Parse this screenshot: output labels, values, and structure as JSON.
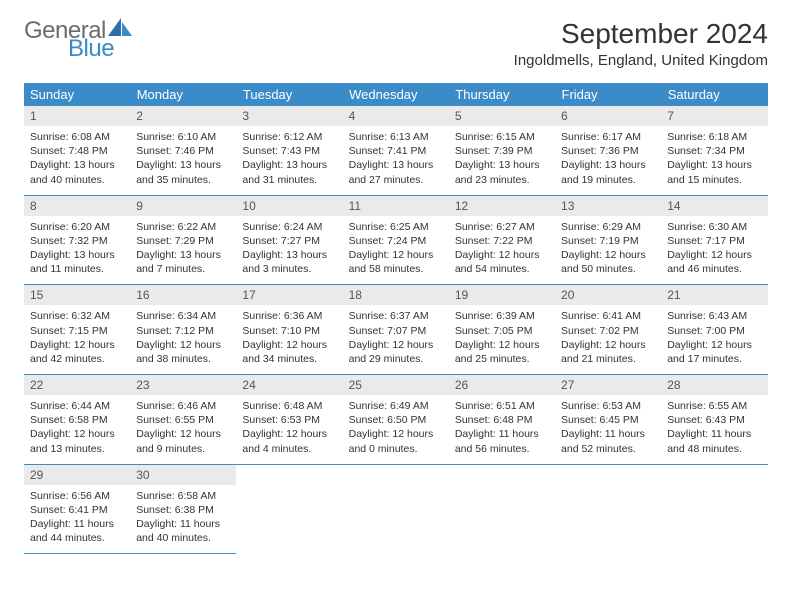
{
  "logo": {
    "general": "General",
    "blue": "Blue"
  },
  "title": "September 2024",
  "location": "Ingoldmells, England, United Kingdom",
  "colors": {
    "header_bg": "#3b8bc9",
    "daynum_bg": "#eaeaea"
  },
  "dow": [
    "Sunday",
    "Monday",
    "Tuesday",
    "Wednesday",
    "Thursday",
    "Friday",
    "Saturday"
  ],
  "days": [
    {
      "n": "1",
      "sr": "6:08 AM",
      "ss": "7:48 PM",
      "dl": "13 hours and 40 minutes."
    },
    {
      "n": "2",
      "sr": "6:10 AM",
      "ss": "7:46 PM",
      "dl": "13 hours and 35 minutes."
    },
    {
      "n": "3",
      "sr": "6:12 AM",
      "ss": "7:43 PM",
      "dl": "13 hours and 31 minutes."
    },
    {
      "n": "4",
      "sr": "6:13 AM",
      "ss": "7:41 PM",
      "dl": "13 hours and 27 minutes."
    },
    {
      "n": "5",
      "sr": "6:15 AM",
      "ss": "7:39 PM",
      "dl": "13 hours and 23 minutes."
    },
    {
      "n": "6",
      "sr": "6:17 AM",
      "ss": "7:36 PM",
      "dl": "13 hours and 19 minutes."
    },
    {
      "n": "7",
      "sr": "6:18 AM",
      "ss": "7:34 PM",
      "dl": "13 hours and 15 minutes."
    },
    {
      "n": "8",
      "sr": "6:20 AM",
      "ss": "7:32 PM",
      "dl": "13 hours and 11 minutes."
    },
    {
      "n": "9",
      "sr": "6:22 AM",
      "ss": "7:29 PM",
      "dl": "13 hours and 7 minutes."
    },
    {
      "n": "10",
      "sr": "6:24 AM",
      "ss": "7:27 PM",
      "dl": "13 hours and 3 minutes."
    },
    {
      "n": "11",
      "sr": "6:25 AM",
      "ss": "7:24 PM",
      "dl": "12 hours and 58 minutes."
    },
    {
      "n": "12",
      "sr": "6:27 AM",
      "ss": "7:22 PM",
      "dl": "12 hours and 54 minutes."
    },
    {
      "n": "13",
      "sr": "6:29 AM",
      "ss": "7:19 PM",
      "dl": "12 hours and 50 minutes."
    },
    {
      "n": "14",
      "sr": "6:30 AM",
      "ss": "7:17 PM",
      "dl": "12 hours and 46 minutes."
    },
    {
      "n": "15",
      "sr": "6:32 AM",
      "ss": "7:15 PM",
      "dl": "12 hours and 42 minutes."
    },
    {
      "n": "16",
      "sr": "6:34 AM",
      "ss": "7:12 PM",
      "dl": "12 hours and 38 minutes."
    },
    {
      "n": "17",
      "sr": "6:36 AM",
      "ss": "7:10 PM",
      "dl": "12 hours and 34 minutes."
    },
    {
      "n": "18",
      "sr": "6:37 AM",
      "ss": "7:07 PM",
      "dl": "12 hours and 29 minutes."
    },
    {
      "n": "19",
      "sr": "6:39 AM",
      "ss": "7:05 PM",
      "dl": "12 hours and 25 minutes."
    },
    {
      "n": "20",
      "sr": "6:41 AM",
      "ss": "7:02 PM",
      "dl": "12 hours and 21 minutes."
    },
    {
      "n": "21",
      "sr": "6:43 AM",
      "ss": "7:00 PM",
      "dl": "12 hours and 17 minutes."
    },
    {
      "n": "22",
      "sr": "6:44 AM",
      "ss": "6:58 PM",
      "dl": "12 hours and 13 minutes."
    },
    {
      "n": "23",
      "sr": "6:46 AM",
      "ss": "6:55 PM",
      "dl": "12 hours and 9 minutes."
    },
    {
      "n": "24",
      "sr": "6:48 AM",
      "ss": "6:53 PM",
      "dl": "12 hours and 4 minutes."
    },
    {
      "n": "25",
      "sr": "6:49 AM",
      "ss": "6:50 PM",
      "dl": "12 hours and 0 minutes."
    },
    {
      "n": "26",
      "sr": "6:51 AM",
      "ss": "6:48 PM",
      "dl": "11 hours and 56 minutes."
    },
    {
      "n": "27",
      "sr": "6:53 AM",
      "ss": "6:45 PM",
      "dl": "11 hours and 52 minutes."
    },
    {
      "n": "28",
      "sr": "6:55 AM",
      "ss": "6:43 PM",
      "dl": "11 hours and 48 minutes."
    },
    {
      "n": "29",
      "sr": "6:56 AM",
      "ss": "6:41 PM",
      "dl": "11 hours and 44 minutes."
    },
    {
      "n": "30",
      "sr": "6:58 AM",
      "ss": "6:38 PM",
      "dl": "11 hours and 40 minutes."
    }
  ],
  "labels": {
    "sunrise": "Sunrise: ",
    "sunset": "Sunset: ",
    "daylight": "Daylight: "
  },
  "layout": {
    "first_day_offset": 0,
    "trailing_empty": 5
  }
}
